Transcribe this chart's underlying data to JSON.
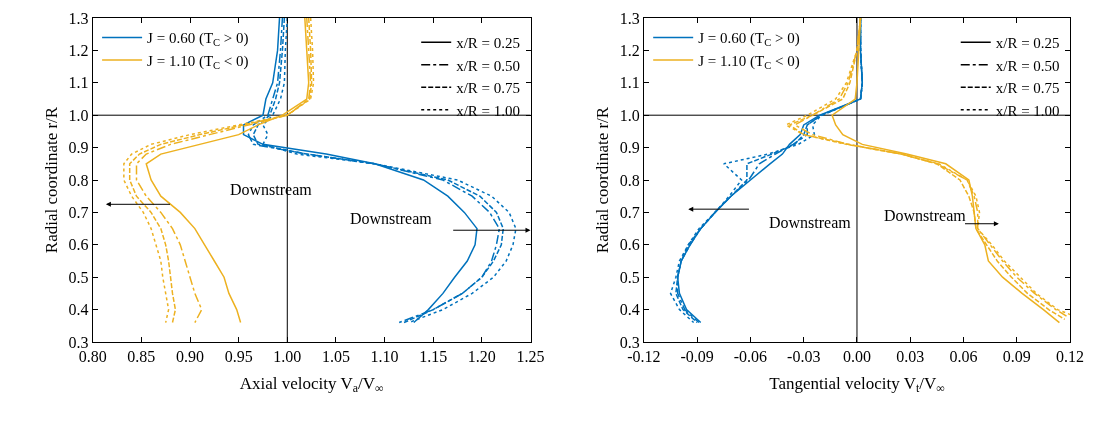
{
  "chart_data": [
    {
      "type": "line",
      "xlabel": "Axial velocity V$_{a}$/V$_{∞}$",
      "ylabel": "Radial coordinate r/R",
      "legend": "top left",
      "xlim": [
        0.8,
        1.25
      ],
      "xticks": [
        {
          "value": 0.8,
          "label": "0.80"
        },
        {
          "value": 0.85,
          "label": "0.85"
        },
        {
          "value": 0.9,
          "label": "0.90"
        },
        {
          "value": 0.95,
          "label": "0.95"
        },
        {
          "value": 1.0,
          "label": "1.00"
        },
        {
          "value": 1.05,
          "label": "1.05"
        },
        {
          "value": 1.1,
          "label": "1.10"
        },
        {
          "value": 1.15,
          "label": "1.15"
        },
        {
          "value": 1.2,
          "label": "1.20"
        },
        {
          "value": 1.25,
          "label": "1.25"
        }
      ],
      "ylim": [
        0.3,
        1.3
      ],
      "yticks": [
        0.3,
        0.4,
        0.5,
        0.6,
        0.7,
        0.8,
        0.9,
        {
          "value": 1.0,
          "label": "1.0"
        },
        1.1,
        1.2,
        1.3
      ],
      "ref_lines": [
        {
          "axis": "x",
          "value": 1.0,
          "color": "#000000"
        },
        {
          "axis": "y",
          "value": 1.0,
          "color": "#000000"
        }
      ],
      "annotations": [
        "x/R = 0.25",
        "x/R = 0.50",
        "x/R = 0.75",
        "x/R = 1.00",
        "Downstream",
        "Downstream"
      ],
      "series": [
        {
          "name": "J = 0.60 (T$_{C}$ > 0)",
          "color": "#0072bd",
          "line_style": "solid",
          "values": [
            1.3,
            1.2,
            1.1,
            1.05,
            1.0,
            0.97,
            0.94,
            0.91,
            0.88,
            0.85,
            0.8,
            0.75,
            0.7,
            0.65,
            0.6,
            0.55,
            0.5,
            0.45,
            0.4,
            0.36
          ],
          "x": [
            0.992,
            0.99,
            0.985,
            0.978,
            0.975,
            0.955,
            0.955,
            0.975,
            1.04,
            1.09,
            1.14,
            1.165,
            1.182,
            1.195,
            1.193,
            1.185,
            1.172,
            1.16,
            1.145,
            1.13
          ]
        },
        {
          "color": "#0072bd",
          "line_style": "dashdot",
          "values": [
            1.3,
            1.2,
            1.1,
            1.05,
            1.0,
            0.97,
            0.94,
            0.91,
            0.88,
            0.85,
            0.8,
            0.75,
            0.7,
            0.65,
            0.6,
            0.55,
            0.5,
            0.45,
            0.4,
            0.36
          ],
          "x": [
            0.995,
            0.993,
            0.99,
            0.985,
            0.98,
            0.965,
            0.96,
            0.965,
            1.02,
            1.09,
            1.16,
            1.19,
            1.208,
            1.218,
            1.215,
            1.21,
            1.2,
            1.18,
            1.15,
            1.115
          ]
        },
        {
          "color": "#0072bd",
          "line_style": "dashed",
          "values": [
            1.3,
            1.2,
            1.1,
            1.05,
            1.0,
            0.97,
            0.94,
            0.91,
            0.88,
            0.85,
            0.8,
            0.75,
            0.7,
            0.65,
            0.6,
            0.55,
            0.5,
            0.45,
            0.4,
            0.36
          ],
          "x": [
            0.997,
            0.995,
            0.992,
            0.988,
            0.982,
            0.97,
            0.965,
            0.97,
            1.02,
            1.09,
            1.165,
            1.198,
            1.215,
            1.222,
            1.22,
            1.212,
            1.2,
            1.18,
            1.15,
            1.12
          ]
        },
        {
          "color": "#0072bd",
          "line_style": "dotted",
          "values": [
            1.3,
            1.2,
            1.1,
            1.05,
            1.0,
            0.97,
            0.94,
            0.91,
            0.88,
            0.85,
            0.8,
            0.75,
            0.7,
            0.65,
            0.6,
            0.55,
            0.5,
            0.45,
            0.4,
            0.36
          ],
          "x": [
            1.0,
            0.998,
            0.997,
            0.993,
            0.985,
            0.975,
            0.98,
            0.975,
            1.01,
            1.09,
            1.175,
            1.21,
            1.228,
            1.235,
            1.232,
            1.225,
            1.212,
            1.19,
            1.16,
            1.125
          ]
        },
        {
          "name": "J = 1.10 (T$_{C}$ < 0)",
          "color": "#edb120",
          "line_style": "solid",
          "values": [
            1.3,
            1.2,
            1.1,
            1.05,
            1.0,
            0.97,
            0.94,
            0.91,
            0.88,
            0.85,
            0.8,
            0.75,
            0.7,
            0.65,
            0.6,
            0.55,
            0.5,
            0.45,
            0.4,
            0.36
          ],
          "x": [
            1.018,
            1.02,
            1.022,
            1.02,
            0.995,
            0.97,
            0.95,
            0.91,
            0.87,
            0.855,
            0.86,
            0.87,
            0.89,
            0.905,
            0.915,
            0.925,
            0.935,
            0.94,
            0.948,
            0.952
          ]
        },
        {
          "color": "#edb120",
          "line_style": "dashdot",
          "values": [
            1.3,
            1.2,
            1.1,
            1.05,
            1.0,
            0.97,
            0.94,
            0.91,
            0.88,
            0.85,
            0.8,
            0.75,
            0.7,
            0.65,
            0.6,
            0.55,
            0.5,
            0.45,
            0.4,
            0.36
          ],
          "x": [
            1.02,
            1.022,
            1.024,
            1.022,
            1.0,
            0.96,
            0.92,
            0.88,
            0.855,
            0.845,
            0.845,
            0.855,
            0.87,
            0.882,
            0.89,
            0.895,
            0.9,
            0.905,
            0.912,
            0.905
          ]
        },
        {
          "color": "#edb120",
          "line_style": "dashed",
          "values": [
            1.3,
            1.2,
            1.1,
            1.05,
            1.0,
            0.97,
            0.94,
            0.91,
            0.88,
            0.85,
            0.8,
            0.75,
            0.7,
            0.65,
            0.6,
            0.55,
            0.5,
            0.45,
            0.4,
            0.36
          ],
          "x": [
            1.022,
            1.024,
            1.025,
            1.023,
            1.0,
            0.955,
            0.91,
            0.87,
            0.848,
            0.838,
            0.838,
            0.845,
            0.86,
            0.87,
            0.875,
            0.878,
            0.88,
            0.882,
            0.885,
            0.882
          ]
        },
        {
          "color": "#edb120",
          "line_style": "dotted",
          "values": [
            1.3,
            1.2,
            1.1,
            1.05,
            1.0,
            0.97,
            0.94,
            0.91,
            0.88,
            0.85,
            0.8,
            0.75,
            0.7,
            0.65,
            0.6,
            0.55,
            0.5,
            0.45,
            0.4,
            0.36
          ],
          "x": [
            1.024,
            1.026,
            1.027,
            1.024,
            1.0,
            0.95,
            0.9,
            0.86,
            0.84,
            0.832,
            0.832,
            0.84,
            0.852,
            0.86,
            0.865,
            0.87,
            0.872,
            0.875,
            0.878,
            0.875
          ]
        }
      ]
    },
    {
      "type": "line",
      "xlabel": "Tangential velocity V$_{t}$/V$_{∞}$",
      "ylabel": "Radial coordinate r/R",
      "legend": "top left",
      "xlim": [
        -0.12,
        0.12
      ],
      "xticks": [
        {
          "value": -0.12,
          "label": "-0.12"
        },
        {
          "value": -0.09,
          "label": "-0.09"
        },
        {
          "value": -0.06,
          "label": "-0.06"
        },
        {
          "value": -0.03,
          "label": "-0.03"
        },
        {
          "value": 0,
          "label": "0.00"
        },
        {
          "value": 0.03,
          "label": "0.03"
        },
        {
          "value": 0.06,
          "label": "0.06"
        },
        {
          "value": 0.09,
          "label": "0.09"
        },
        {
          "value": 0.12,
          "label": "0.12"
        }
      ],
      "ylim": [
        0.3,
        1.3
      ],
      "yticks": [
        0.3,
        0.4,
        0.5,
        0.6,
        0.7,
        0.8,
        0.9,
        {
          "value": 1.0,
          "label": "1.0"
        },
        1.1,
        1.2,
        1.3
      ],
      "ref_lines": [
        {
          "axis": "x",
          "value": 0,
          "color": "#000000"
        },
        {
          "axis": "y",
          "value": 1.0,
          "color": "#000000"
        }
      ],
      "annotations": [
        "x/R = 0.25",
        "x/R = 0.50",
        "x/R = 0.75",
        "x/R = 1.00",
        "Downstream",
        "Downstream"
      ],
      "series": [
        {
          "name": "J = 0.60 (T$_{C}$ > 0)",
          "color": "#0072bd",
          "line_style": "solid",
          "values": [
            1.3,
            1.2,
            1.1,
            1.05,
            1.0,
            0.97,
            0.94,
            0.91,
            0.88,
            0.85,
            0.8,
            0.75,
            0.7,
            0.65,
            0.6,
            0.55,
            0.5,
            0.45,
            0.4,
            0.36
          ],
          "x": [
            0.002,
            0.002,
            0.003,
            0.002,
            -0.021,
            -0.03,
            -0.032,
            -0.038,
            -0.042,
            -0.049,
            -0.06,
            -0.071,
            -0.08,
            -0.088,
            -0.094,
            -0.099,
            -0.101,
            -0.1,
            -0.096,
            -0.088
          ]
        },
        {
          "color": "#0072bd",
          "line_style": "dashdot",
          "values": [
            1.3,
            1.2,
            1.1,
            1.05,
            1.0,
            0.97,
            0.94,
            0.91,
            0.88,
            0.85,
            0.8,
            0.75,
            0.7,
            0.65,
            0.6,
            0.55,
            0.5,
            0.45,
            0.4,
            0.36
          ],
          "x": [
            0.002,
            0.002,
            0.003,
            0.002,
            -0.02,
            -0.028,
            -0.028,
            -0.036,
            -0.046,
            -0.055,
            -0.061,
            -0.071,
            -0.08,
            -0.088,
            -0.094,
            -0.099,
            -0.101,
            -0.101,
            -0.097,
            -0.089
          ]
        },
        {
          "color": "#0072bd",
          "line_style": "dashed",
          "values": [
            1.3,
            1.2,
            1.1,
            1.05,
            1.0,
            0.97,
            0.94,
            0.91,
            0.88,
            0.85,
            0.8,
            0.75,
            0.7,
            0.65,
            0.6,
            0.55,
            0.5,
            0.45,
            0.4,
            0.36
          ],
          "x": [
            0.002,
            0.002,
            0.003,
            0.002,
            -0.02,
            -0.028,
            -0.03,
            -0.035,
            -0.048,
            -0.062,
            -0.062,
            -0.071,
            -0.08,
            -0.088,
            -0.095,
            -0.099,
            -0.101,
            -0.102,
            -0.098,
            -0.09
          ]
        },
        {
          "color": "#0072bd",
          "line_style": "dotted",
          "values": [
            1.3,
            1.2,
            1.1,
            1.05,
            1.0,
            0.97,
            0.94,
            0.91,
            0.88,
            0.85,
            0.8,
            0.75,
            0.7,
            0.65,
            0.6,
            0.55,
            0.5,
            0.45,
            0.4,
            0.36
          ],
          "x": [
            0.002,
            0.002,
            0.003,
            0.002,
            -0.02,
            -0.025,
            -0.024,
            -0.033,
            -0.05,
            -0.075,
            -0.065,
            -0.072,
            -0.08,
            -0.089,
            -0.095,
            -0.1,
            -0.102,
            -0.105,
            -0.1,
            -0.092
          ]
        },
        {
          "name": "J = 1.10 (T$_{C}$ < 0)",
          "color": "#edb120",
          "line_style": "solid",
          "values": [
            1.3,
            1.2,
            1.1,
            1.05,
            1.0,
            0.97,
            0.94,
            0.91,
            0.88,
            0.85,
            0.8,
            0.75,
            0.7,
            0.65,
            0.6,
            0.55,
            0.5,
            0.45,
            0.4,
            0.36
          ],
          "x": [
            0.002,
            0.001,
            0.0,
            -0.001,
            -0.014,
            -0.012,
            -0.008,
            0.003,
            0.028,
            0.05,
            0.063,
            0.065,
            0.066,
            0.067,
            0.072,
            0.074,
            0.082,
            0.093,
            0.105,
            0.114
          ]
        },
        {
          "color": "#edb120",
          "line_style": "dashdot",
          "values": [
            1.3,
            1.2,
            1.1,
            1.05,
            1.0,
            0.97,
            0.94,
            0.91,
            0.88,
            0.85,
            0.8,
            0.75,
            0.7,
            0.65,
            0.6,
            0.55,
            0.5,
            0.45,
            0.4,
            0.38
          ],
          "x": [
            0.002,
            0.0,
            -0.005,
            -0.01,
            -0.025,
            -0.035,
            -0.025,
            -0.005,
            0.025,
            0.045,
            0.062,
            0.066,
            0.068,
            0.068,
            0.075,
            0.082,
            0.09,
            0.1,
            0.112,
            0.118
          ]
        },
        {
          "color": "#edb120",
          "line_style": "dashed",
          "values": [
            1.3,
            1.2,
            1.1,
            1.05,
            1.0,
            0.97,
            0.94,
            0.91,
            0.88,
            0.85,
            0.8,
            0.75,
            0.7,
            0.65,
            0.6,
            0.55,
            0.5,
            0.45,
            0.4,
            0.37
          ],
          "x": [
            0.002,
            0.0,
            -0.004,
            -0.008,
            -0.025,
            -0.038,
            -0.03,
            -0.005,
            0.025,
            0.045,
            0.058,
            0.063,
            0.066,
            0.067,
            0.073,
            0.079,
            0.087,
            0.096,
            0.108,
            0.117
          ]
        },
        {
          "color": "#edb120",
          "line_style": "dotted",
          "values": [
            1.3,
            1.2,
            1.1,
            1.05,
            1.0,
            0.97,
            0.94,
            0.91,
            0.88,
            0.85,
            0.8,
            0.75,
            0.7,
            0.65,
            0.6,
            0.55,
            0.5,
            0.45,
            0.4,
            0.385
          ],
          "x": [
            0.002,
            0.0,
            -0.006,
            -0.012,
            -0.028,
            -0.04,
            -0.03,
            -0.006,
            0.025,
            0.046,
            0.062,
            0.067,
            0.069,
            0.068,
            0.076,
            0.083,
            0.092,
            0.101,
            0.113,
            0.12
          ]
        }
      ]
    }
  ]
}
